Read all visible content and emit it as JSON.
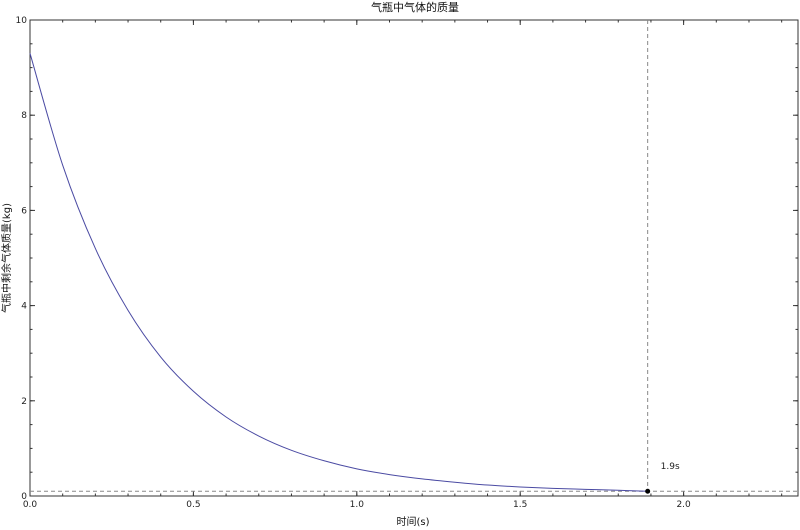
{
  "chart_data": {
    "type": "line",
    "title": "气瓶中气体的质量",
    "xlabel": "时间(s)",
    "ylabel": "气瓶中剩余气体质量(kg)",
    "xlim": [
      0,
      2.35
    ],
    "ylim": [
      0,
      10
    ],
    "x_ticks": [
      "0.0",
      "0.5",
      "1.0",
      "1.5",
      "2.0"
    ],
    "x_tick_values": [
      0,
      0.5,
      1.0,
      1.5,
      2.0
    ],
    "y_ticks": [
      "0",
      "2",
      "4",
      "6",
      "8",
      "10"
    ],
    "y_tick_values": [
      0,
      2,
      4,
      6,
      8,
      10
    ],
    "grid": false,
    "colors": {
      "curve": "#4b4ba3",
      "reference": "#888888",
      "marker": "#000000"
    },
    "series": [
      {
        "x": [
          0,
          0.1,
          0.2,
          0.3,
          0.4,
          0.5,
          0.6,
          0.7,
          0.8,
          0.9,
          1.0,
          1.1,
          1.2,
          1.3,
          1.4,
          1.5,
          1.6,
          1.7,
          1.8,
          1.89
        ],
        "values": [
          9.3,
          6.95,
          5.2,
          3.9,
          2.92,
          2.2,
          1.66,
          1.26,
          0.96,
          0.74,
          0.57,
          0.45,
          0.36,
          0.29,
          0.23,
          0.19,
          0.16,
          0.14,
          0.12,
          0.1
        ]
      }
    ],
    "reference_lines": {
      "vertical_x": 1.89,
      "horizontal_y": 0.1
    },
    "marker_point": {
      "x": 1.89,
      "y": 0.1
    },
    "annotation": "1.9s"
  }
}
